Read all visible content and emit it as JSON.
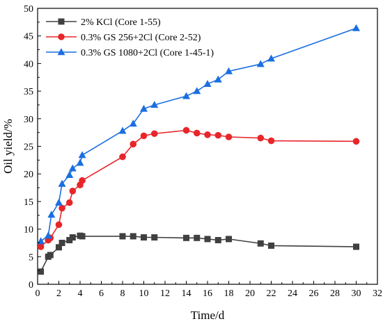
{
  "chart_data": {
    "type": "line",
    "title": "",
    "xlabel": "Time/d",
    "ylabel": "Oil yield/%",
    "xlim": [
      0,
      32
    ],
    "ylim": [
      0,
      50
    ],
    "xticks": [
      0,
      2,
      4,
      6,
      8,
      10,
      12,
      14,
      16,
      18,
      20,
      22,
      24,
      26,
      28,
      30,
      32
    ],
    "yticks": [
      0,
      5,
      10,
      15,
      20,
      25,
      30,
      35,
      40,
      45,
      50
    ],
    "grid": false,
    "legend_position": "top-left",
    "series": [
      {
        "name": "2% KCl (Core 1-55)",
        "color": "#404040",
        "marker": "square",
        "x": [
          0.3,
          1,
          1.2,
          2,
          2.3,
          3,
          3.3,
          4,
          4.2,
          8,
          9,
          10,
          11,
          14,
          15,
          16,
          17,
          18,
          21,
          22,
          30
        ],
        "y": [
          2.3,
          5.0,
          5.3,
          6.7,
          7.5,
          8.0,
          8.5,
          8.8,
          8.7,
          8.7,
          8.7,
          8.5,
          8.5,
          8.4,
          8.4,
          8.2,
          8.0,
          8.2,
          7.4,
          7.0,
          6.8
        ]
      },
      {
        "name": "0.3% GS 256+2Cl (Core 2-52)",
        "color": "#e8262a",
        "marker": "circle",
        "x": [
          0.3,
          1,
          1.2,
          2,
          2.3,
          3,
          3.3,
          4,
          4.2,
          8,
          9,
          10,
          11,
          14,
          15,
          16,
          17,
          18,
          21,
          22,
          30
        ],
        "y": [
          6.8,
          8.0,
          8.4,
          10.8,
          13.8,
          14.8,
          16.9,
          18.0,
          18.8,
          23.1,
          25.4,
          26.9,
          27.3,
          27.9,
          27.4,
          27.1,
          27.0,
          26.7,
          26.5,
          26.0,
          25.9
        ]
      },
      {
        "name": "0.3% GS 1080+2Cl (Core 1-45-1)",
        "color": "#1a6fe0",
        "marker": "triangle",
        "x": [
          0.3,
          1,
          1.3,
          2,
          2.3,
          3,
          3.3,
          4,
          4.2,
          8,
          9,
          10,
          11,
          14,
          15,
          16,
          17,
          18,
          21,
          22,
          30
        ],
        "y": [
          7.8,
          8.8,
          12.6,
          14.8,
          18.2,
          19.8,
          21.0,
          22.0,
          23.4,
          27.8,
          29.1,
          31.8,
          32.5,
          34.1,
          35.0,
          36.3,
          37.1,
          38.6,
          39.9,
          40.9,
          46.4
        ]
      }
    ]
  }
}
